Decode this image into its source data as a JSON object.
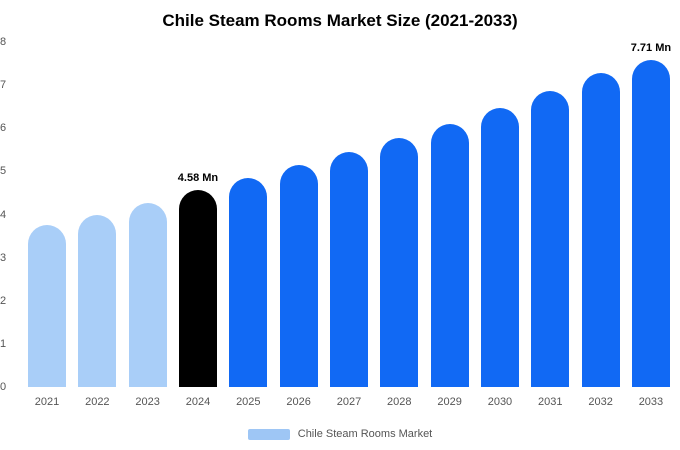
{
  "title": "Chile Steam Rooms Market Size (2021-2033)",
  "legend": {
    "label": "Chile Steam Rooms Market",
    "swatch_color": "#9EC6F5"
  },
  "chart_data": {
    "type": "bar",
    "title": "Chile Steam Rooms Market Size (2021-2033)",
    "categories": [
      "2021",
      "2022",
      "2023",
      "2024",
      "2025",
      "2026",
      "2027",
      "2028",
      "2029",
      "2030",
      "2031",
      "2032",
      "2033"
    ],
    "values": [
      3.75,
      4.0,
      4.27,
      4.58,
      4.85,
      5.14,
      5.45,
      5.77,
      6.11,
      6.47,
      6.86,
      7.27,
      7.71
    ],
    "bar_colors": [
      "#A9CEF8",
      "#A9CEF8",
      "#A9CEF8",
      "#000000",
      "#1169F4",
      "#1169F4",
      "#1169F4",
      "#1169F4",
      "#1169F4",
      "#1169F4",
      "#1169F4",
      "#1169F4",
      "#1169F4"
    ],
    "data_labels": [
      "",
      "",
      "",
      "4.58 Mn",
      "",
      "",
      "",
      "",
      "",
      "",
      "",
      "",
      "7.71 Mn"
    ],
    "unit": "Mn",
    "xlabel": "",
    "ylabel": "",
    "ylim": [
      0,
      8
    ],
    "yticks": [
      0,
      1,
      2,
      3,
      4,
      5,
      6,
      7,
      8
    ],
    "grid": false,
    "legend_position": "bottom"
  }
}
